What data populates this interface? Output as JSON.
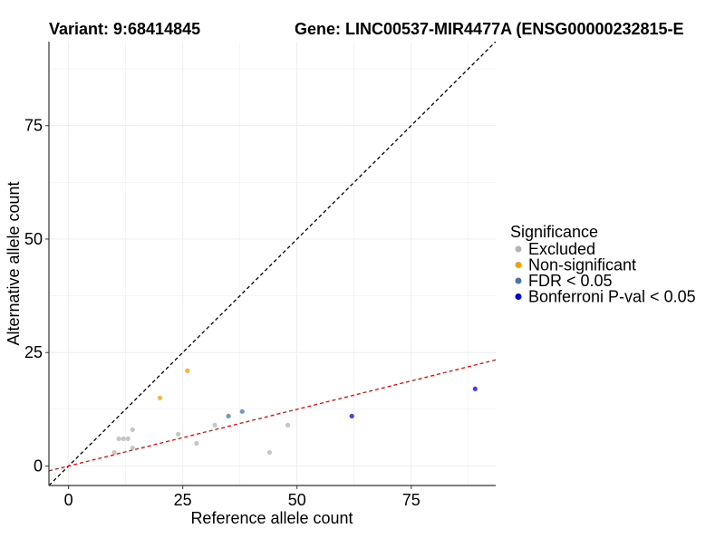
{
  "chart_data": {
    "type": "scatter",
    "title_variant": "Variant: 9:68414845",
    "title_gene": "Gene: LINC00537-MIR4477A (ENSG00000232815-E",
    "xlabel": "Reference allele count",
    "ylabel": "Alternative allele count",
    "xlim": [
      -4.3,
      93.5
    ],
    "ylim": [
      -4.3,
      93.5
    ],
    "xticks": [
      0,
      25,
      50,
      75
    ],
    "yticks": [
      0,
      25,
      50,
      75
    ],
    "grid": true,
    "legend": {
      "position": "right",
      "title": "Significance",
      "entries": [
        {
          "label": "Excluded",
          "color": "#b3b3b3"
        },
        {
          "label": "Non-significant",
          "color": "#ff9900"
        },
        {
          "label": "FDR < 0.05",
          "color": "#4477aa"
        },
        {
          "label": "Bonferroni P-val < 0.05",
          "color": "#0000ee"
        }
      ]
    },
    "reference_lines": [
      {
        "name": "identity",
        "slope": 1.0,
        "intercept": 0,
        "color": "#000000",
        "dash": "dashed"
      },
      {
        "name": "expected-ratio",
        "slope": 0.25,
        "intercept": 0,
        "color": "#ff0000",
        "dash": "dashed"
      }
    ],
    "series": [
      {
        "name": "Excluded",
        "color": "#b3b3b3",
        "points": [
          {
            "x": 10,
            "y": 3
          },
          {
            "x": 11,
            "y": 6
          },
          {
            "x": 12,
            "y": 6
          },
          {
            "x": 13,
            "y": 6
          },
          {
            "x": 14,
            "y": 8
          },
          {
            "x": 14,
            "y": 4
          },
          {
            "x": 24,
            "y": 7
          },
          {
            "x": 28,
            "y": 5
          },
          {
            "x": 32,
            "y": 9
          },
          {
            "x": 44,
            "y": 3
          },
          {
            "x": 48,
            "y": 9
          }
        ]
      },
      {
        "name": "Non-significant",
        "color": "#ff9900",
        "points": [
          {
            "x": 20,
            "y": 15
          },
          {
            "x": 26,
            "y": 21
          }
        ]
      },
      {
        "name": "FDR < 0.05",
        "color": "#4477aa",
        "points": [
          {
            "x": 35,
            "y": 11
          },
          {
            "x": 38,
            "y": 12
          }
        ]
      },
      {
        "name": "Bonferroni P-val < 0.05",
        "color": "#0000ee",
        "points": [
          {
            "x": 62,
            "y": 11
          },
          {
            "x": 89,
            "y": 17
          }
        ]
      }
    ]
  }
}
